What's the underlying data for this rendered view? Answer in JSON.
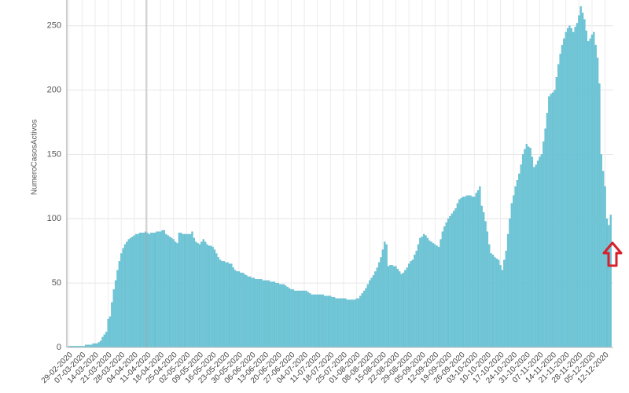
{
  "chart_data": {
    "type": "bar",
    "y_label": "NumeroCasosActivos",
    "color": "#6cc5d6",
    "grid": true,
    "ylim": [
      0,
      270
    ],
    "yticks": [
      0,
      50,
      100,
      150,
      200,
      250
    ],
    "categories": [
      "29-02-2020",
      null,
      null,
      null,
      null,
      null,
      null,
      "07-03-2020",
      null,
      null,
      null,
      null,
      null,
      null,
      "14-03-2020",
      null,
      null,
      null,
      null,
      null,
      null,
      "21-03-2020",
      null,
      null,
      null,
      null,
      null,
      null,
      "28-03-2020",
      null,
      null,
      null,
      null,
      null,
      null,
      "04-04-2020",
      null,
      null,
      null,
      null,
      null,
      null,
      "11-04-2020",
      null,
      null,
      null,
      null,
      null,
      null,
      "18-04-2020",
      null,
      null,
      null,
      null,
      null,
      null,
      "25-04-2020",
      null,
      null,
      null,
      null,
      null,
      null,
      "02-05-2020",
      null,
      null,
      null,
      null,
      null,
      null,
      "09-05-2020",
      null,
      null,
      null,
      null,
      null,
      null,
      "16-05-2020",
      null,
      null,
      null,
      null,
      null,
      null,
      "23-05-2020",
      null,
      null,
      null,
      null,
      null,
      null,
      "30-05-2020",
      null,
      null,
      null,
      null,
      null,
      null,
      "06-06-2020",
      null,
      null,
      null,
      null,
      null,
      null,
      "13-06-2020",
      null,
      null,
      null,
      null,
      null,
      null,
      "20-06-2020",
      null,
      null,
      null,
      null,
      null,
      null,
      "27-06-2020",
      null,
      null,
      null,
      null,
      null,
      null,
      "04-07-2020",
      null,
      null,
      null,
      null,
      null,
      null,
      "11-07-2020",
      null,
      null,
      null,
      null,
      null,
      null,
      "18-07-2020",
      null,
      null,
      null,
      null,
      null,
      null,
      "25-07-2020",
      null,
      null,
      null,
      null,
      null,
      null,
      "01-08-2020",
      null,
      null,
      null,
      null,
      null,
      null,
      "08-08-2020",
      null,
      null,
      null,
      null,
      null,
      null,
      "15-08-2020",
      null,
      null,
      null,
      null,
      null,
      null,
      "22-08-2020",
      null,
      null,
      null,
      null,
      null,
      null,
      "29-08-2020",
      null,
      null,
      null,
      null,
      null,
      null,
      "05-09-2020",
      null,
      null,
      null,
      null,
      null,
      null,
      "12-09-2020",
      null,
      null,
      null,
      null,
      null,
      null,
      "19-09-2020",
      null,
      null,
      null,
      null,
      null,
      null,
      "26-09-2020",
      null,
      null,
      null,
      null,
      null,
      null,
      "03-10-2020",
      null,
      null,
      null,
      null,
      null,
      null,
      "10-10-2020",
      null,
      null,
      null,
      null,
      null,
      null,
      "17-10-2020",
      null,
      null,
      null,
      null,
      null,
      null,
      "24-10-2020",
      null,
      null,
      null,
      null,
      null,
      null,
      "31-10-2020",
      null,
      null,
      null,
      null,
      null,
      null,
      "07-11-2020",
      null,
      null,
      null,
      null,
      null,
      null,
      "14-11-2020",
      null,
      null,
      null,
      null,
      null,
      null,
      "21-11-2020",
      null,
      null,
      null,
      null,
      null,
      null,
      "28-11-2020",
      null,
      null,
      null,
      null,
      null,
      null,
      "05-12-2020",
      null,
      null,
      null,
      null,
      null,
      null,
      "12-12-2020",
      null,
      null,
      null
    ],
    "values": [
      1,
      1,
      1,
      1,
      1,
      1,
      1,
      1,
      1,
      2,
      2,
      2,
      2,
      3,
      3,
      3,
      4,
      5,
      8,
      10,
      12,
      22,
      24,
      35,
      45,
      52,
      60,
      67,
      73,
      77,
      80,
      82,
      84,
      85,
      86,
      87,
      88,
      88,
      89,
      89,
      89,
      90,
      89,
      88,
      89,
      89,
      89,
      90,
      90,
      90,
      91,
      91,
      88,
      87,
      86,
      85,
      84,
      82,
      81,
      89,
      89,
      88,
      88,
      88,
      88,
      88,
      90,
      85,
      82,
      81,
      80,
      82,
      84,
      82,
      80,
      79,
      79,
      78,
      76,
      73,
      70,
      68,
      67,
      67,
      66,
      66,
      65,
      65,
      62,
      60,
      59,
      59,
      58,
      58,
      57,
      56,
      55,
      55,
      54,
      54,
      53,
      53,
      53,
      53,
      52,
      52,
      52,
      52,
      51,
      51,
      51,
      50,
      50,
      49,
      49,
      49,
      48,
      47,
      46,
      45,
      45,
      44,
      44,
      44,
      44,
      44,
      44,
      44,
      43,
      42,
      41,
      41,
      41,
      41,
      41,
      41,
      41,
      40,
      40,
      40,
      40,
      39,
      39,
      38,
      38,
      38,
      38,
      38,
      38,
      37,
      37,
      37,
      37,
      37,
      38,
      38,
      40,
      42,
      44,
      46,
      49,
      52,
      54,
      56,
      59,
      62,
      66,
      70,
      76,
      82,
      80,
      63,
      64,
      64,
      63,
      63,
      61,
      59,
      57,
      58,
      60,
      62,
      65,
      67,
      68,
      72,
      75,
      80,
      85,
      86,
      88,
      87,
      85,
      83,
      82,
      81,
      80,
      79,
      78,
      84,
      90,
      94,
      97,
      100,
      102,
      104,
      106,
      108,
      112,
      115,
      116,
      117,
      117,
      118,
      118,
      118,
      117,
      117,
      120,
      122,
      125,
      110,
      105,
      98,
      90,
      80,
      73,
      72,
      70,
      69,
      68,
      64,
      60,
      68,
      75,
      88,
      100,
      112,
      118,
      125,
      130,
      135,
      142,
      150,
      154,
      158,
      156,
      155,
      148,
      140,
      142,
      145,
      148,
      150,
      160,
      170,
      182,
      195,
      197,
      198,
      200,
      210,
      220,
      228,
      235,
      240,
      245,
      248,
      250,
      248,
      245,
      249,
      252,
      258,
      265,
      260,
      255,
      246,
      238,
      240,
      243,
      245,
      235,
      225,
      205,
      150,
      137,
      125,
      100,
      95,
      103
    ]
  }
}
